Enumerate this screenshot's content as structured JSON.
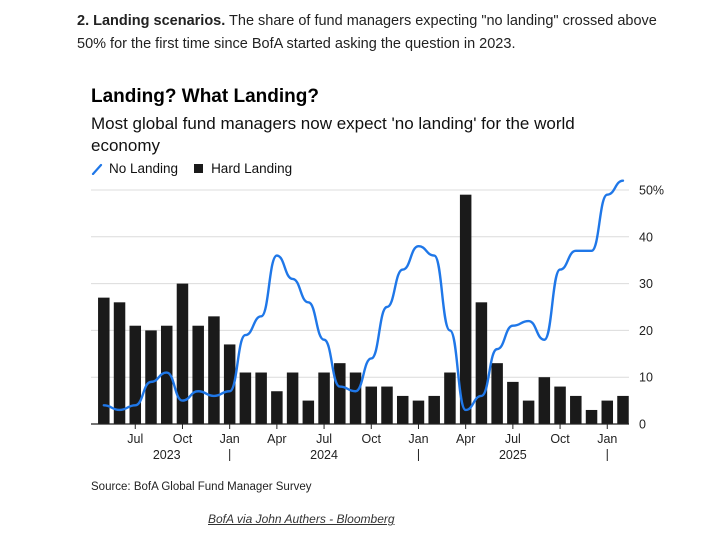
{
  "intro": {
    "bold": "2. Landing scenarios.",
    "text": " The share of fund managers expecting \"no landing\" crossed above 50% for the first time since BofA started asking the question in 2023."
  },
  "chart_data": {
    "type": "bar+line",
    "title": "Landing? What Landing?",
    "subtitle": "Most global fund managers now expect 'no landing' for the world economy",
    "legend": [
      "No Landing",
      "Hard Landing"
    ],
    "legend_position": "top-left",
    "colors": {
      "line": "#1f77e8",
      "bar": "#1a1a1a",
      "grid": "#dcdcdc"
    },
    "ylim": [
      0,
      50
    ],
    "yticks": [
      "0",
      "10",
      "20",
      "30",
      "40",
      "50%"
    ],
    "ytick_values": [
      0,
      10,
      20,
      30,
      40,
      50
    ],
    "grid": true,
    "month_ticks": [
      {
        "label": "Jul",
        "index": 2
      },
      {
        "label": "Oct",
        "index": 5
      },
      {
        "label": "Jan",
        "index": 8
      },
      {
        "label": "Apr",
        "index": 11
      },
      {
        "label": "Jul",
        "index": 14
      },
      {
        "label": "Oct",
        "index": 17
      },
      {
        "label": "Jan",
        "index": 20
      },
      {
        "label": "Apr",
        "index": 23
      },
      {
        "label": "Jul",
        "index": 26
      },
      {
        "label": "Oct",
        "index": 29
      },
      {
        "label": "Jan",
        "index": 32
      }
    ],
    "year_labels": [
      {
        "label": "2023",
        "index": 4
      },
      {
        "label": "2024",
        "index": 14
      },
      {
        "label": "2025",
        "index": 26
      }
    ],
    "year_separators": [
      8,
      20,
      32
    ],
    "series": [
      {
        "name": "Hard Landing",
        "kind": "bar",
        "values": [
          27,
          26,
          21,
          20,
          21,
          30,
          21,
          23,
          17,
          11,
          11,
          7,
          11,
          5,
          11,
          13,
          11,
          8,
          8,
          6,
          5,
          6,
          11,
          49,
          26,
          13,
          9,
          5,
          10,
          8,
          6,
          3,
          5,
          6
        ]
      },
      {
        "name": "No Landing",
        "kind": "line",
        "values": [
          4,
          3,
          4,
          9,
          11,
          5,
          7,
          6,
          7,
          19,
          23,
          36,
          31,
          26,
          18,
          8,
          7,
          14,
          25,
          33,
          38,
          36,
          20,
          3,
          6,
          16,
          21,
          22,
          18,
          33,
          37,
          37,
          49,
          52
        ]
      }
    ]
  },
  "source": "Source: BofA Global Fund Manager Survey",
  "credit": "BofA via John Authers - Bloomberg"
}
